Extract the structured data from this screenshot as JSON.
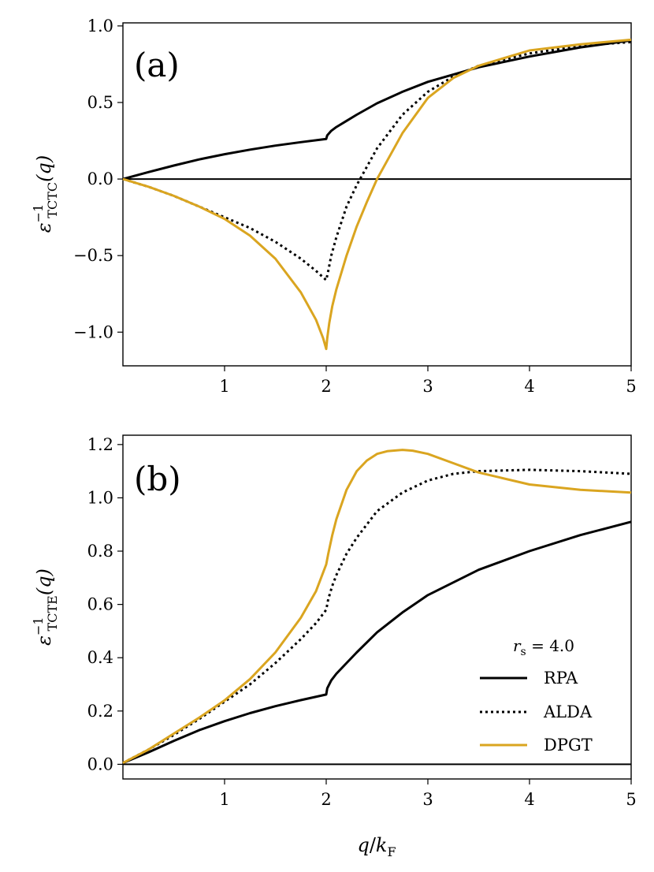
{
  "chart_data": [
    {
      "type": "line",
      "panel": "(a)",
      "xlabel": "q / k_F",
      "ylabel": "ε^{-1}_{TCTC}(q)",
      "ylabel_parts": {
        "base": "ε",
        "sup": "−1",
        "sub": "TCTC",
        "arg": "(q)"
      },
      "xlim": [
        0,
        5
      ],
      "ylim": [
        -1.22,
        1.02
      ],
      "xticks": [
        1,
        2,
        3,
        4,
        5
      ],
      "xtick_labels": [
        "1",
        "2",
        "3",
        "4",
        "5"
      ],
      "yticks": [
        -1.0,
        -0.5,
        0.0,
        0.5,
        1.0
      ],
      "ytick_labels": [
        "−1.0",
        "−0.5",
        "0.0",
        "0.5",
        "1.0"
      ],
      "hline": 0.0,
      "series": [
        {
          "name": "RPA",
          "style": "solid",
          "color": "#000000",
          "x": [
            0,
            0.25,
            0.5,
            0.75,
            1.0,
            1.25,
            1.5,
            1.75,
            2.0,
            2.01,
            2.05,
            2.1,
            2.2,
            2.3,
            2.5,
            2.75,
            3.0,
            3.5,
            4.0,
            4.5,
            5.0
          ],
          "y": [
            0,
            0.045,
            0.088,
            0.128,
            0.162,
            0.192,
            0.218,
            0.241,
            0.262,
            0.285,
            0.315,
            0.34,
            0.38,
            0.42,
            0.495,
            0.57,
            0.635,
            0.73,
            0.8,
            0.86,
            0.905
          ]
        },
        {
          "name": "ALDA",
          "style": "dotted",
          "color": "#000000",
          "x": [
            0,
            0.25,
            0.5,
            0.75,
            1.0,
            1.25,
            1.5,
            1.75,
            1.9,
            2.0,
            2.02,
            2.05,
            2.1,
            2.2,
            2.3,
            2.4,
            2.5,
            2.75,
            3.0,
            3.25,
            3.5,
            4.0,
            4.5,
            5.0
          ],
          "y": [
            0,
            -0.05,
            -0.11,
            -0.18,
            -0.25,
            -0.32,
            -0.41,
            -0.52,
            -0.6,
            -0.66,
            -0.6,
            -0.5,
            -0.38,
            -0.18,
            -0.04,
            0.08,
            0.2,
            0.42,
            0.57,
            0.67,
            0.74,
            0.82,
            0.87,
            0.895
          ]
        },
        {
          "name": "DPGT",
          "style": "solid",
          "color": "#daa520",
          "x": [
            0,
            0.25,
            0.5,
            0.75,
            1.0,
            1.25,
            1.5,
            1.75,
            1.9,
            1.97,
            2.0,
            2.01,
            2.03,
            2.06,
            2.1,
            2.2,
            2.3,
            2.4,
            2.5,
            2.6,
            2.75,
            3.0,
            3.25,
            3.5,
            4.0,
            4.5,
            5.0
          ],
          "y": [
            0,
            -0.05,
            -0.11,
            -0.18,
            -0.26,
            -0.37,
            -0.52,
            -0.74,
            -0.92,
            -1.04,
            -1.11,
            -1.04,
            -0.94,
            -0.83,
            -0.72,
            -0.5,
            -0.31,
            -0.15,
            0.0,
            0.12,
            0.3,
            0.53,
            0.66,
            0.74,
            0.84,
            0.88,
            0.91
          ]
        }
      ]
    },
    {
      "type": "line",
      "panel": "(b)",
      "xlabel": "q / k_F",
      "ylabel": "ε^{-1}_{TCTE}(q)",
      "ylabel_parts": {
        "base": "ε",
        "sup": "−1",
        "sub": "TCTE",
        "arg": "(q)"
      },
      "xlim": [
        0,
        5
      ],
      "ylim": [
        -0.055,
        1.235
      ],
      "xticks": [
        1,
        2,
        3,
        4,
        5
      ],
      "xtick_labels": [
        "1",
        "2",
        "3",
        "4",
        "5"
      ],
      "yticks": [
        0.0,
        0.2,
        0.4,
        0.6,
        0.8,
        1.0,
        1.2
      ],
      "ytick_labels": [
        "0.0",
        "0.2",
        "0.4",
        "0.6",
        "0.8",
        "1.0",
        "1.2"
      ],
      "hline": 0.0,
      "legend": {
        "title": "r_s = 4.0",
        "title_parts": {
          "base": "r",
          "sub": "s",
          "rest": " = 4.0"
        },
        "loc": "lower-right",
        "entries": [
          "RPA",
          "ALDA",
          "DPGT"
        ]
      },
      "series": [
        {
          "name": "RPA",
          "style": "solid",
          "color": "#000000",
          "x": [
            0,
            0.25,
            0.5,
            0.75,
            1.0,
            1.25,
            1.5,
            1.75,
            2.0,
            2.01,
            2.05,
            2.1,
            2.2,
            2.3,
            2.5,
            2.75,
            3.0,
            3.5,
            4.0,
            4.5,
            5.0
          ],
          "y": [
            0.005,
            0.045,
            0.088,
            0.128,
            0.162,
            0.192,
            0.218,
            0.241,
            0.262,
            0.285,
            0.315,
            0.34,
            0.38,
            0.42,
            0.495,
            0.57,
            0.635,
            0.73,
            0.8,
            0.86,
            0.91
          ]
        },
        {
          "name": "ALDA",
          "style": "dotted",
          "color": "#000000",
          "x": [
            0,
            0.25,
            0.5,
            0.75,
            1.0,
            1.25,
            1.5,
            1.75,
            1.9,
            2.0,
            2.02,
            2.06,
            2.1,
            2.2,
            2.3,
            2.4,
            2.5,
            2.75,
            3.0,
            3.25,
            3.5,
            4.0,
            4.5,
            5.0
          ],
          "y": [
            0.005,
            0.055,
            0.11,
            0.17,
            0.235,
            0.3,
            0.38,
            0.47,
            0.53,
            0.58,
            0.62,
            0.67,
            0.71,
            0.79,
            0.85,
            0.9,
            0.95,
            1.02,
            1.065,
            1.09,
            1.1,
            1.105,
            1.1,
            1.09
          ]
        },
        {
          "name": "DPGT",
          "style": "solid",
          "color": "#daa520",
          "x": [
            0,
            0.25,
            0.5,
            0.75,
            1.0,
            1.25,
            1.5,
            1.75,
            1.9,
            2.0,
            2.02,
            2.06,
            2.1,
            2.2,
            2.3,
            2.4,
            2.5,
            2.6,
            2.75,
            2.85,
            3.0,
            3.25,
            3.5,
            4.0,
            4.5,
            5.0
          ],
          "y": [
            0.005,
            0.055,
            0.115,
            0.175,
            0.24,
            0.32,
            0.42,
            0.55,
            0.65,
            0.75,
            0.79,
            0.86,
            0.92,
            1.03,
            1.1,
            1.14,
            1.165,
            1.175,
            1.18,
            1.177,
            1.165,
            1.13,
            1.095,
            1.05,
            1.03,
            1.02
          ]
        }
      ]
    }
  ],
  "panels": [
    {
      "tag": "(a)"
    },
    {
      "tag": "(b)"
    }
  ],
  "xlabel_parts": {
    "q": "q",
    "k": "k",
    "sub": "F"
  }
}
